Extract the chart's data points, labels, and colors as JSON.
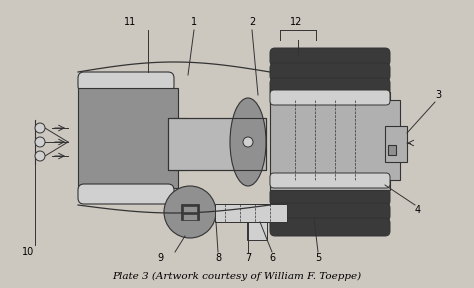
{
  "bg_color": "#ccc8c0",
  "title": "Plate 3 (Artwork courtesy of William F. Toeppe)",
  "title_fontsize": 7.5,
  "label_fontsize": 7,
  "colors": {
    "light_gray": "#b0b0b0",
    "mid_gray": "#909090",
    "dark": "#383838",
    "very_light": "#d0d0d0",
    "white_fill": "#c8c8c8",
    "line": "#333333",
    "fin_dark": "#3a3a3a",
    "glass_fill": "#b8b8b8"
  }
}
